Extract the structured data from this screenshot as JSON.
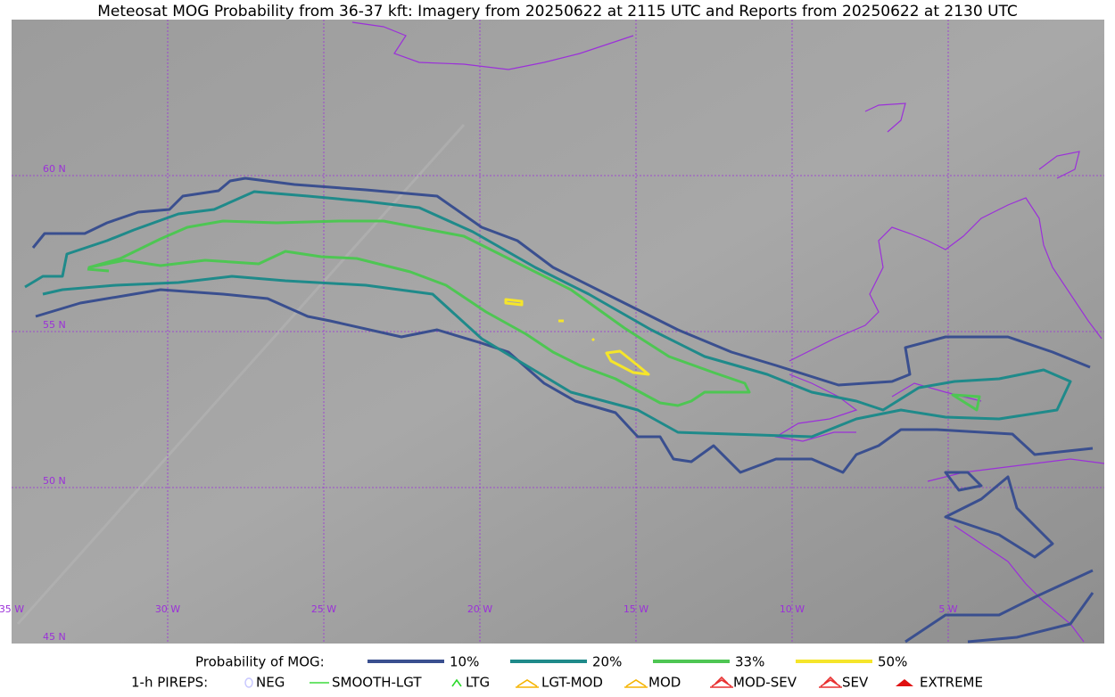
{
  "title": "Meteosat MOG Probability from 36-37 kft: Imagery from 20250622 at 2115 UTC and Reports from 20250622 at 2130 UTC",
  "map": {
    "lat_labels": [
      "60 N",
      "55 N",
      "50 N",
      "45 N"
    ],
    "lon_labels": [
      "35 W",
      "30 W",
      "25 W",
      "20 W",
      "15 W",
      "10 W",
      "5 W"
    ]
  },
  "legend": {
    "probability": {
      "label": "Probability of MOG:",
      "items": [
        {
          "name": "10%",
          "color": "#3a4f8f"
        },
        {
          "name": "20%",
          "color": "#1f8a8a"
        },
        {
          "name": "33%",
          "color": "#4ec653"
        },
        {
          "name": "50%",
          "color": "#f5e52a"
        }
      ]
    },
    "pireps": {
      "label": "1-h PIREPS:",
      "items": [
        {
          "name": "NEG",
          "color": "#c8c8ff"
        },
        {
          "name": "SMOOTH-LGT",
          "color": "#3ddb3d"
        },
        {
          "name": "LTG",
          "color": "#2bd92b"
        },
        {
          "name": "LGT-MOD",
          "color": "#f5b400"
        },
        {
          "name": "MOD",
          "color": "#f5b400"
        },
        {
          "name": "MOD-SEV",
          "color": "#e83030"
        },
        {
          "name": "SEV",
          "color": "#e83030"
        },
        {
          "name": "EXTREME",
          "color": "#e01010"
        }
      ]
    }
  }
}
